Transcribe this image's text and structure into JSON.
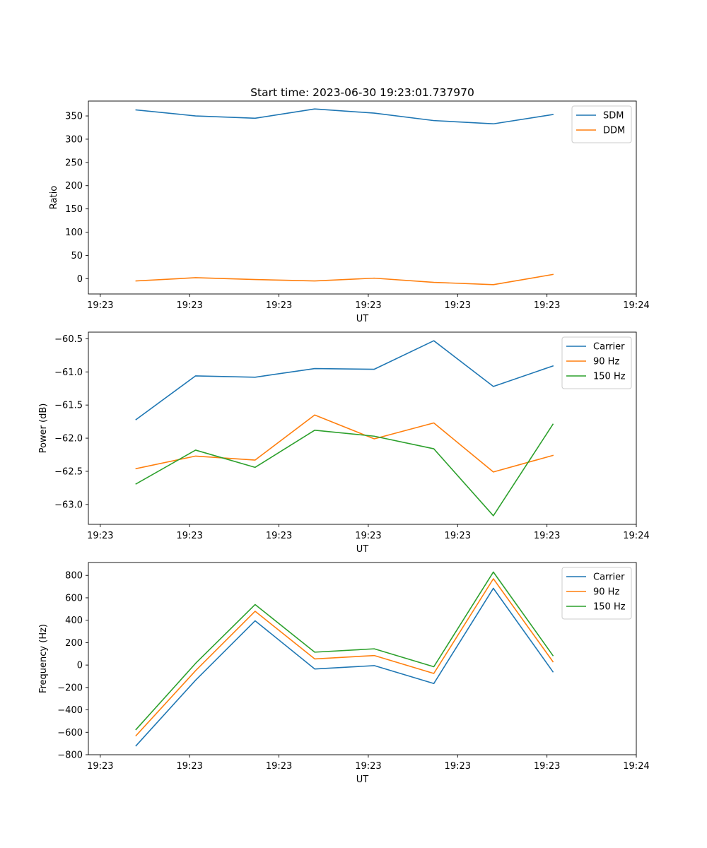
{
  "figure": {
    "title": "Start time: 2023-06-30 19:23:01.737970",
    "colors": {
      "blue": "#1f77b4",
      "orange": "#ff7f0e",
      "green": "#2ca02c"
    }
  },
  "chart_data": [
    {
      "type": "line",
      "title": "Start time: 2023-06-30 19:23:01.737970",
      "xlabel": "UT",
      "ylabel": "Ratio",
      "x": [
        1,
        2,
        3,
        4,
        5,
        6,
        7,
        8
      ],
      "xlim": [
        0.2,
        9.4
      ],
      "xticks": [
        0.4,
        1.9,
        3.4,
        4.9,
        6.4,
        7.9,
        9.4
      ],
      "xtick_labels": [
        "19:23",
        "19:23",
        "19:23",
        "19:23",
        "19:23",
        "19:23",
        "19:24"
      ],
      "ylim": [
        -33,
        382
      ],
      "yticks": [
        0,
        50,
        100,
        150,
        200,
        250,
        300,
        350
      ],
      "ytick_labels": [
        "0",
        "50",
        "100",
        "150",
        "200",
        "250",
        "300",
        "350"
      ],
      "legend": "top-right",
      "series": [
        {
          "name": "SDM",
          "color": "#1f77b4",
          "values": [
            363,
            350,
            345,
            365,
            356,
            340,
            333,
            353
          ]
        },
        {
          "name": "DDM",
          "color": "#ff7f0e",
          "values": [
            -5,
            2,
            -2,
            -5,
            1,
            -8,
            -13,
            9
          ]
        }
      ]
    },
    {
      "type": "line",
      "xlabel": "UT",
      "ylabel": "Power (dB)",
      "x": [
        1,
        2,
        3,
        4,
        5,
        6,
        7,
        8
      ],
      "xlim": [
        0.2,
        9.4
      ],
      "xticks": [
        0.4,
        1.9,
        3.4,
        4.9,
        6.4,
        7.9,
        9.4
      ],
      "xtick_labels": [
        "19:23",
        "19:23",
        "19:23",
        "19:23",
        "19:23",
        "19:23",
        "19:24"
      ],
      "ylim": [
        -63.3,
        -60.4
      ],
      "yticks": [
        -63.0,
        -62.5,
        -62.0,
        -61.5,
        -61.0,
        -60.5
      ],
      "ytick_labels": [
        "−63.0",
        "−62.5",
        "−62.0",
        "−61.5",
        "−61.0",
        "−60.5"
      ],
      "legend": "top-right",
      "series": [
        {
          "name": "Carrier",
          "color": "#1f77b4",
          "values": [
            -61.72,
            -61.06,
            -61.08,
            -60.95,
            -60.96,
            -60.53,
            -61.22,
            -60.91
          ]
        },
        {
          "name": "90 Hz",
          "color": "#ff7f0e",
          "values": [
            -62.46,
            -62.27,
            -62.33,
            -61.65,
            -62.01,
            -61.77,
            -62.51,
            -62.26
          ]
        },
        {
          "name": "150 Hz",
          "color": "#2ca02c",
          "values": [
            -62.69,
            -62.18,
            -62.44,
            -61.88,
            -61.97,
            -62.16,
            -63.17,
            -61.79
          ]
        }
      ]
    },
    {
      "type": "line",
      "xlabel": "UT",
      "ylabel": "Frequency (Hz)",
      "x": [
        1,
        2,
        3,
        4,
        5,
        6,
        7,
        8
      ],
      "xlim": [
        0.2,
        9.4
      ],
      "xticks": [
        0.4,
        1.9,
        3.4,
        4.9,
        6.4,
        7.9,
        9.4
      ],
      "xtick_labels": [
        "19:23",
        "19:23",
        "19:23",
        "19:23",
        "19:23",
        "19:23",
        "19:24"
      ],
      "ylim": [
        -800,
        915
      ],
      "yticks": [
        -800,
        -600,
        -400,
        -200,
        0,
        200,
        400,
        600,
        800
      ],
      "ytick_labels": [
        "−800",
        "−600",
        "−400",
        "−200",
        "0",
        "200",
        "400",
        "600",
        "800"
      ],
      "legend": "top-right",
      "series": [
        {
          "name": "Carrier",
          "color": "#1f77b4",
          "values": [
            -720,
            -135,
            395,
            -35,
            -5,
            -165,
            685,
            -60
          ]
        },
        {
          "name": "90 Hz",
          "color": "#ff7f0e",
          "values": [
            -630,
            -50,
            480,
            55,
            85,
            -75,
            770,
            30
          ]
        },
        {
          "name": "150 Hz",
          "color": "#2ca02c",
          "values": [
            -575,
            15,
            540,
            115,
            145,
            -15,
            830,
            85
          ]
        }
      ]
    }
  ]
}
